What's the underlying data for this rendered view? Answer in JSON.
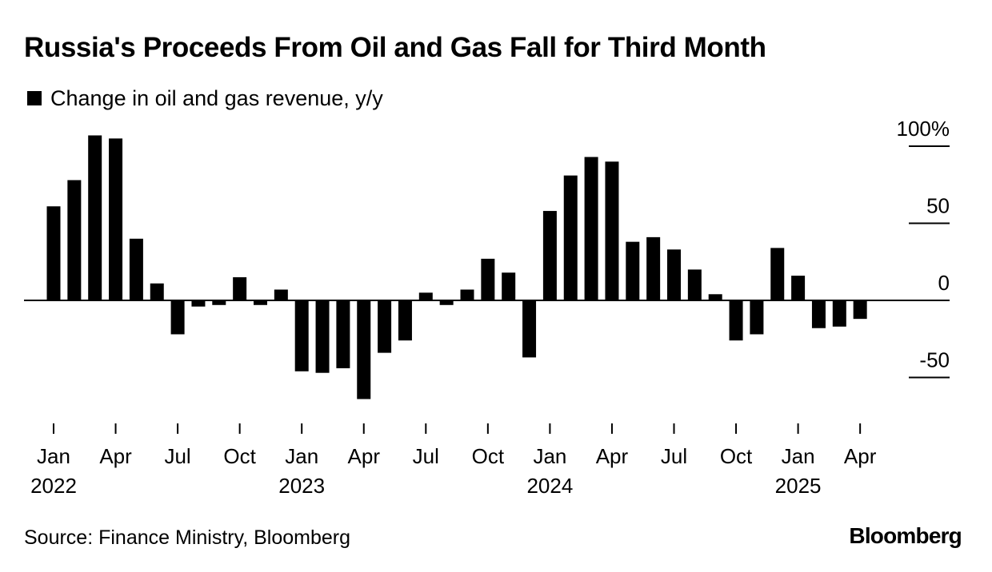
{
  "header": {
    "title": "Russia's Proceeds From Oil and Gas Fall for Third Month"
  },
  "legend": {
    "label": "Change in oil and gas revenue, y/y",
    "color": "#000000"
  },
  "footer": {
    "source": "Source: Finance Ministry, Bloomberg",
    "brand": "Bloomberg"
  },
  "chart_data": {
    "type": "bar",
    "title": "Russia's Proceeds From Oil and Gas Fall for Third Month",
    "xlabel": "",
    "ylabel": "",
    "ylim": [
      -65,
      105
    ],
    "y_ticks": [
      {
        "value": 100,
        "label": "100%"
      },
      {
        "value": 50,
        "label": "50"
      },
      {
        "value": 0,
        "label": "0"
      },
      {
        "value": -50,
        "label": "-50"
      }
    ],
    "x_ticks": [
      {
        "index": 0,
        "label": "Jan",
        "year": "2022"
      },
      {
        "index": 3,
        "label": "Apr",
        "year": ""
      },
      {
        "index": 6,
        "label": "Jul",
        "year": ""
      },
      {
        "index": 9,
        "label": "Oct",
        "year": ""
      },
      {
        "index": 12,
        "label": "Jan",
        "year": "2023"
      },
      {
        "index": 15,
        "label": "Apr",
        "year": ""
      },
      {
        "index": 18,
        "label": "Jul",
        "year": ""
      },
      {
        "index": 21,
        "label": "Oct",
        "year": ""
      },
      {
        "index": 24,
        "label": "Jan",
        "year": "2024"
      },
      {
        "index": 27,
        "label": "Apr",
        "year": ""
      },
      {
        "index": 30,
        "label": "Jul",
        "year": ""
      },
      {
        "index": 33,
        "label": "Oct",
        "year": ""
      },
      {
        "index": 36,
        "label": "Jan",
        "year": "2025"
      },
      {
        "index": 39,
        "label": "Apr",
        "year": ""
      }
    ],
    "grid": true,
    "y_axis_position": "right",
    "series": [
      {
        "name": "Change in oil and gas revenue, y/y",
        "color": "#000000",
        "x": [
          "2022-01",
          "2022-02",
          "2022-03",
          "2022-04",
          "2022-05",
          "2022-06",
          "2022-07",
          "2022-08",
          "2022-09",
          "2022-10",
          "2022-11",
          "2022-12",
          "2023-01",
          "2023-02",
          "2023-03",
          "2023-04",
          "2023-05",
          "2023-06",
          "2023-07",
          "2023-08",
          "2023-09",
          "2023-10",
          "2023-11",
          "2023-12",
          "2024-01",
          "2024-02",
          "2024-03",
          "2024-04",
          "2024-05",
          "2024-06",
          "2024-07",
          "2024-08",
          "2024-09",
          "2024-10",
          "2024-11",
          "2024-12",
          "2025-01",
          "2025-02",
          "2025-03",
          "2025-04"
        ],
        "values": [
          61,
          78,
          107,
          105,
          40,
          11,
          -22,
          -4,
          -3,
          15,
          -3,
          7,
          -46,
          -47,
          -44,
          -64,
          -34,
          -26,
          5,
          -3,
          7,
          27,
          18,
          -37,
          58,
          81,
          93,
          90,
          38,
          41,
          33,
          20,
          4,
          -26,
          -22,
          34,
          16,
          -18,
          -17,
          -12
        ]
      }
    ]
  }
}
